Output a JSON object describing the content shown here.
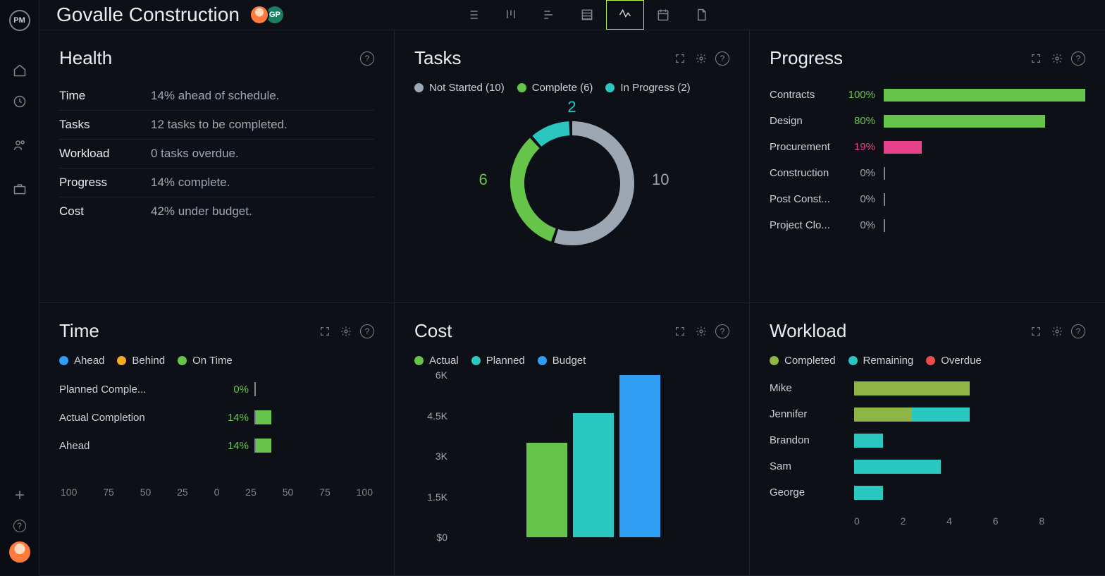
{
  "app": {
    "logo_text": "PM"
  },
  "header": {
    "project_title": "Govalle Construction",
    "avatar2_initials": "GP"
  },
  "colors": {
    "green": "#67c44b",
    "teal": "#2ac7c0",
    "grey": "#9da7b3",
    "blue": "#2f9ef4",
    "orange": "#f9a826",
    "pink": "#e8418b",
    "olive": "#8fb547",
    "red": "#ef4c4c"
  },
  "health": {
    "title": "Health",
    "rows": [
      {
        "label": "Time",
        "value": "14% ahead of schedule."
      },
      {
        "label": "Tasks",
        "value": "12 tasks to be completed."
      },
      {
        "label": "Workload",
        "value": "0 tasks overdue."
      },
      {
        "label": "Progress",
        "value": "14% complete."
      },
      {
        "label": "Cost",
        "value": "42% under budget."
      }
    ]
  },
  "tasks": {
    "title": "Tasks",
    "legend": [
      {
        "label": "Not Started (10)",
        "color": "#9da7b3",
        "value": 10
      },
      {
        "label": "Complete (6)",
        "color": "#67c44b",
        "value": 6
      },
      {
        "label": "In Progress (2)",
        "color": "#2ac7c0",
        "value": 2
      }
    ],
    "donut": {
      "total": 18,
      "segments": [
        {
          "value": 10,
          "color": "#9da7b3"
        },
        {
          "value": 6,
          "color": "#67c44b"
        },
        {
          "value": 2,
          "color": "#2ac7c0"
        }
      ],
      "labels": {
        "top": {
          "text": "2",
          "color": "#2ac7c0"
        },
        "left": {
          "text": "6",
          "color": "#67c44b"
        },
        "right": {
          "text": "10",
          "color": "#9da7b3"
        }
      }
    }
  },
  "progress": {
    "title": "Progress",
    "rows": [
      {
        "label": "Contracts",
        "pct": 100,
        "pct_text": "100%",
        "color": "#67c44b",
        "pct_color": "#67c44b"
      },
      {
        "label": "Design",
        "pct": 80,
        "pct_text": "80%",
        "color": "#67c44b",
        "pct_color": "#67c44b"
      },
      {
        "label": "Procurement",
        "pct": 19,
        "pct_text": "19%",
        "color": "#e8418b",
        "pct_color": "#e8418b"
      },
      {
        "label": "Construction",
        "pct": 0,
        "pct_text": "0%",
        "color": "#7d8590",
        "pct_color": "#9da7b3"
      },
      {
        "label": "Post Const...",
        "pct": 0,
        "pct_text": "0%",
        "color": "#7d8590",
        "pct_color": "#9da7b3"
      },
      {
        "label": "Project Clo...",
        "pct": 0,
        "pct_text": "0%",
        "color": "#7d8590",
        "pct_color": "#9da7b3"
      }
    ]
  },
  "time": {
    "title": "Time",
    "legend": [
      {
        "label": "Ahead",
        "color": "#2f9ef4"
      },
      {
        "label": "Behind",
        "color": "#f9a826"
      },
      {
        "label": "On Time",
        "color": "#67c44b"
      }
    ],
    "rows": [
      {
        "label": "Planned Comple...",
        "pct_text": "0%",
        "pct": 0,
        "color": "#67c44b"
      },
      {
        "label": "Actual Completion",
        "pct_text": "14%",
        "pct": 14,
        "color": "#67c44b"
      },
      {
        "label": "Ahead",
        "pct_text": "14%",
        "pct": 14,
        "color": "#67c44b"
      }
    ],
    "axis": [
      "100",
      "75",
      "50",
      "25",
      "0",
      "25",
      "50",
      "75",
      "100"
    ]
  },
  "cost": {
    "title": "Cost",
    "legend": [
      {
        "label": "Actual",
        "color": "#67c44b"
      },
      {
        "label": "Planned",
        "color": "#2ac7c0"
      },
      {
        "label": "Budget",
        "color": "#2f9ef4"
      }
    ],
    "ymax": 6000,
    "ylabels": [
      "6K",
      "4.5K",
      "3K",
      "1.5K",
      "$0"
    ],
    "bars": [
      {
        "value": 3500,
        "color": "#67c44b"
      },
      {
        "value": 4600,
        "color": "#2ac7c0"
      },
      {
        "value": 6000,
        "color": "#2f9ef4"
      }
    ]
  },
  "workload": {
    "title": "Workload",
    "legend": [
      {
        "label": "Completed",
        "color": "#8fb547"
      },
      {
        "label": "Remaining",
        "color": "#2ac7c0"
      },
      {
        "label": "Overdue",
        "color": "#ef4c4c"
      }
    ],
    "xmax": 8,
    "rows": [
      {
        "label": "Mike",
        "segments": [
          {
            "value": 4.0,
            "color": "#8fb547"
          }
        ]
      },
      {
        "label": "Jennifer",
        "segments": [
          {
            "value": 2.0,
            "color": "#8fb547"
          },
          {
            "value": 2.0,
            "color": "#2ac7c0"
          }
        ]
      },
      {
        "label": "Brandon",
        "segments": [
          {
            "value": 1.0,
            "color": "#2ac7c0"
          }
        ]
      },
      {
        "label": "Sam",
        "segments": [
          {
            "value": 3.0,
            "color": "#2ac7c0"
          }
        ]
      },
      {
        "label": "George",
        "segments": [
          {
            "value": 1.0,
            "color": "#2ac7c0"
          }
        ]
      }
    ],
    "axis": [
      "0",
      "2",
      "4",
      "6",
      "8"
    ]
  }
}
